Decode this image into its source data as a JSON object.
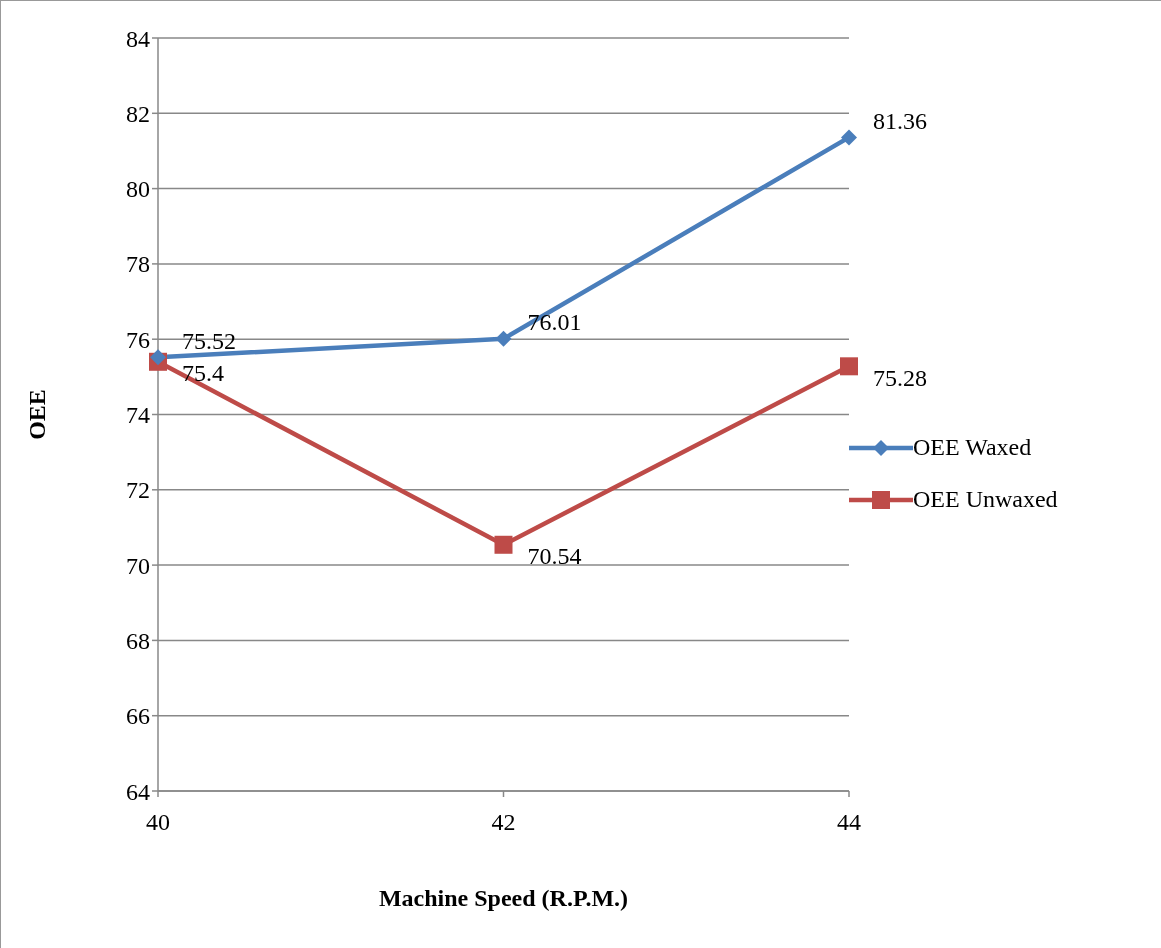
{
  "chart_data": {
    "type": "line",
    "xlabel": "Machine Speed (R.P.M.)",
    "ylabel": "OEE",
    "categories": [
      "40",
      "42",
      "44"
    ],
    "series": [
      {
        "name": "OEE Waxed",
        "color": "#4a7ebb",
        "values": [
          75.52,
          76.01,
          81.36
        ],
        "marker": "diamond"
      },
      {
        "name": "OEE Unwaxed",
        "color": "#be4b48",
        "values": [
          75.4,
          70.54,
          75.28
        ],
        "marker": "square"
      }
    ],
    "ylim": [
      64,
      84
    ],
    "yticks": [
      64,
      66,
      68,
      70,
      72,
      74,
      76,
      78,
      80,
      82,
      84
    ],
    "grid": "y",
    "legend": "right",
    "data_labels": true
  }
}
